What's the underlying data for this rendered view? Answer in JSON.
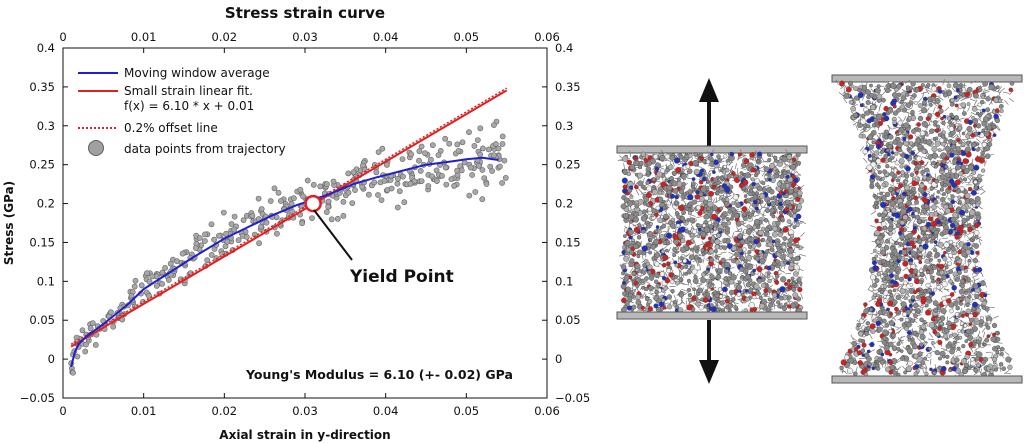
{
  "chart_data": {
    "type": "line",
    "title": "Stress strain curve",
    "xlabel": "Axial strain in y-direction",
    "ylabel": "Stress (GPa)",
    "xlim": [
      0,
      0.06
    ],
    "ylim": [
      -0.05,
      0.4
    ],
    "x_ticks": [
      "0",
      "0.01",
      "0.02",
      "0.03",
      "0.04",
      "0.05",
      "0.06"
    ],
    "y_ticks": [
      "−0.05",
      "0",
      "0.05",
      "0.1",
      "0.15",
      "0.2",
      "0.25",
      "0.3",
      "0.35",
      "0.4"
    ],
    "top_axis_mirrored": true,
    "right_axis_mirrored": true,
    "grid": false,
    "legend_position": "top-left",
    "legend": [
      {
        "label": "Moving window average",
        "color": "#2020d0",
        "style": "line"
      },
      {
        "label": "Small strain linear fit.",
        "label2": "f(x) = 6.10 * x + 0.01",
        "color": "#e02020",
        "style": "line"
      },
      {
        "label": "0.2% offset line",
        "color": "#e02020",
        "style": "dotted"
      },
      {
        "label": "data points from trajectory",
        "color": "#a0a0a0",
        "style": "marker"
      }
    ],
    "series": [
      {
        "name": "Moving window average",
        "color": "#2020d0",
        "x": [
          0.001,
          0.0015,
          0.002,
          0.003,
          0.005,
          0.008,
          0.01,
          0.013,
          0.016,
          0.02,
          0.023,
          0.026,
          0.029,
          0.031,
          0.033,
          0.036,
          0.039,
          0.042,
          0.045,
          0.048,
          0.05,
          0.052,
          0.054
        ],
        "y": [
          -0.01,
          0.01,
          0.02,
          0.03,
          0.045,
          0.07,
          0.09,
          0.11,
          0.13,
          0.155,
          0.17,
          0.185,
          0.198,
          0.205,
          0.212,
          0.225,
          0.234,
          0.242,
          0.25,
          0.254,
          0.257,
          0.259,
          0.256
        ]
      },
      {
        "name": "Small strain linear fit.",
        "color": "#e02020",
        "x": [
          0.001,
          0.055
        ],
        "y": [
          0.0161,
          0.3455
        ]
      },
      {
        "name": "0.2% offset line",
        "color": "#e02020",
        "style": "dotted",
        "x": [
          0.001,
          0.055
        ],
        "y": [
          0.0191,
          0.3485
        ]
      }
    ],
    "scatter": {
      "name": "data points from trajectory",
      "color": "#a0a0a0",
      "count": 420,
      "x_range": [
        0.001,
        0.055
      ]
    },
    "yield_point": {
      "x": 0.031,
      "y": 0.2,
      "label": "Yield Point"
    },
    "annotation": "Young's Modulus = 6.10 (+- 0.02) GPa"
  },
  "illustration": {
    "pull_arrow_up": "arrow-up-icon",
    "pull_arrow_down": "arrow-down-icon",
    "unstrained_block": "molecular-snapshot-initial",
    "strained_block": "molecular-snapshot-necked",
    "atom_colors": [
      "#8a8a8a",
      "#b0b0b0",
      "#d02020",
      "#2030c0",
      "#f0f0f0"
    ],
    "plate_color": "#b8b8b8"
  }
}
